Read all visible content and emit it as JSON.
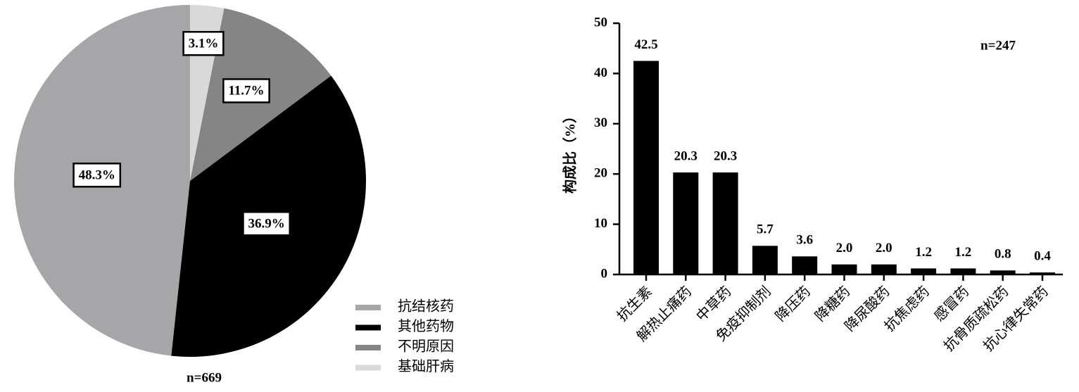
{
  "chart_data": [
    {
      "type": "pie",
      "categories": [
        "抗结核药",
        "其他药物",
        "不明原因",
        "基础肝病"
      ],
      "values": [
        48.3,
        36.9,
        11.7,
        3.1
      ],
      "value_labels": [
        "48.3%",
        "36.9%",
        "11.7%",
        "3.1%"
      ],
      "colors": [
        "#a6a6a8",
        "#000000",
        "#858585",
        "#d9d9d9"
      ],
      "annotation": "n=669",
      "legend": "bottom-right"
    },
    {
      "type": "bar",
      "ylabel": "构成比（%）",
      "categories": [
        "抗生素",
        "解热止痛药",
        "中草药",
        "免疫抑制剂",
        "降压药",
        "降糖药",
        "降尿酸药",
        "抗焦虑药",
        "感冒药",
        "抗骨质疏松药",
        "抗心律失常药"
      ],
      "values": [
        42.5,
        20.3,
        20.3,
        5.7,
        3.6,
        2.0,
        2.0,
        1.2,
        1.2,
        0.8,
        0.4
      ],
      "value_labels": [
        "42.5",
        "20.3",
        "20.3",
        "5.7",
        "3.6",
        "2.0",
        "2.0",
        "1.2",
        "1.2",
        "0.8",
        "0.4"
      ],
      "color": "#000000",
      "ylim": [
        0,
        50
      ],
      "yticks": [
        0,
        10,
        20,
        30,
        40,
        50
      ],
      "annotation": "n=247"
    }
  ]
}
